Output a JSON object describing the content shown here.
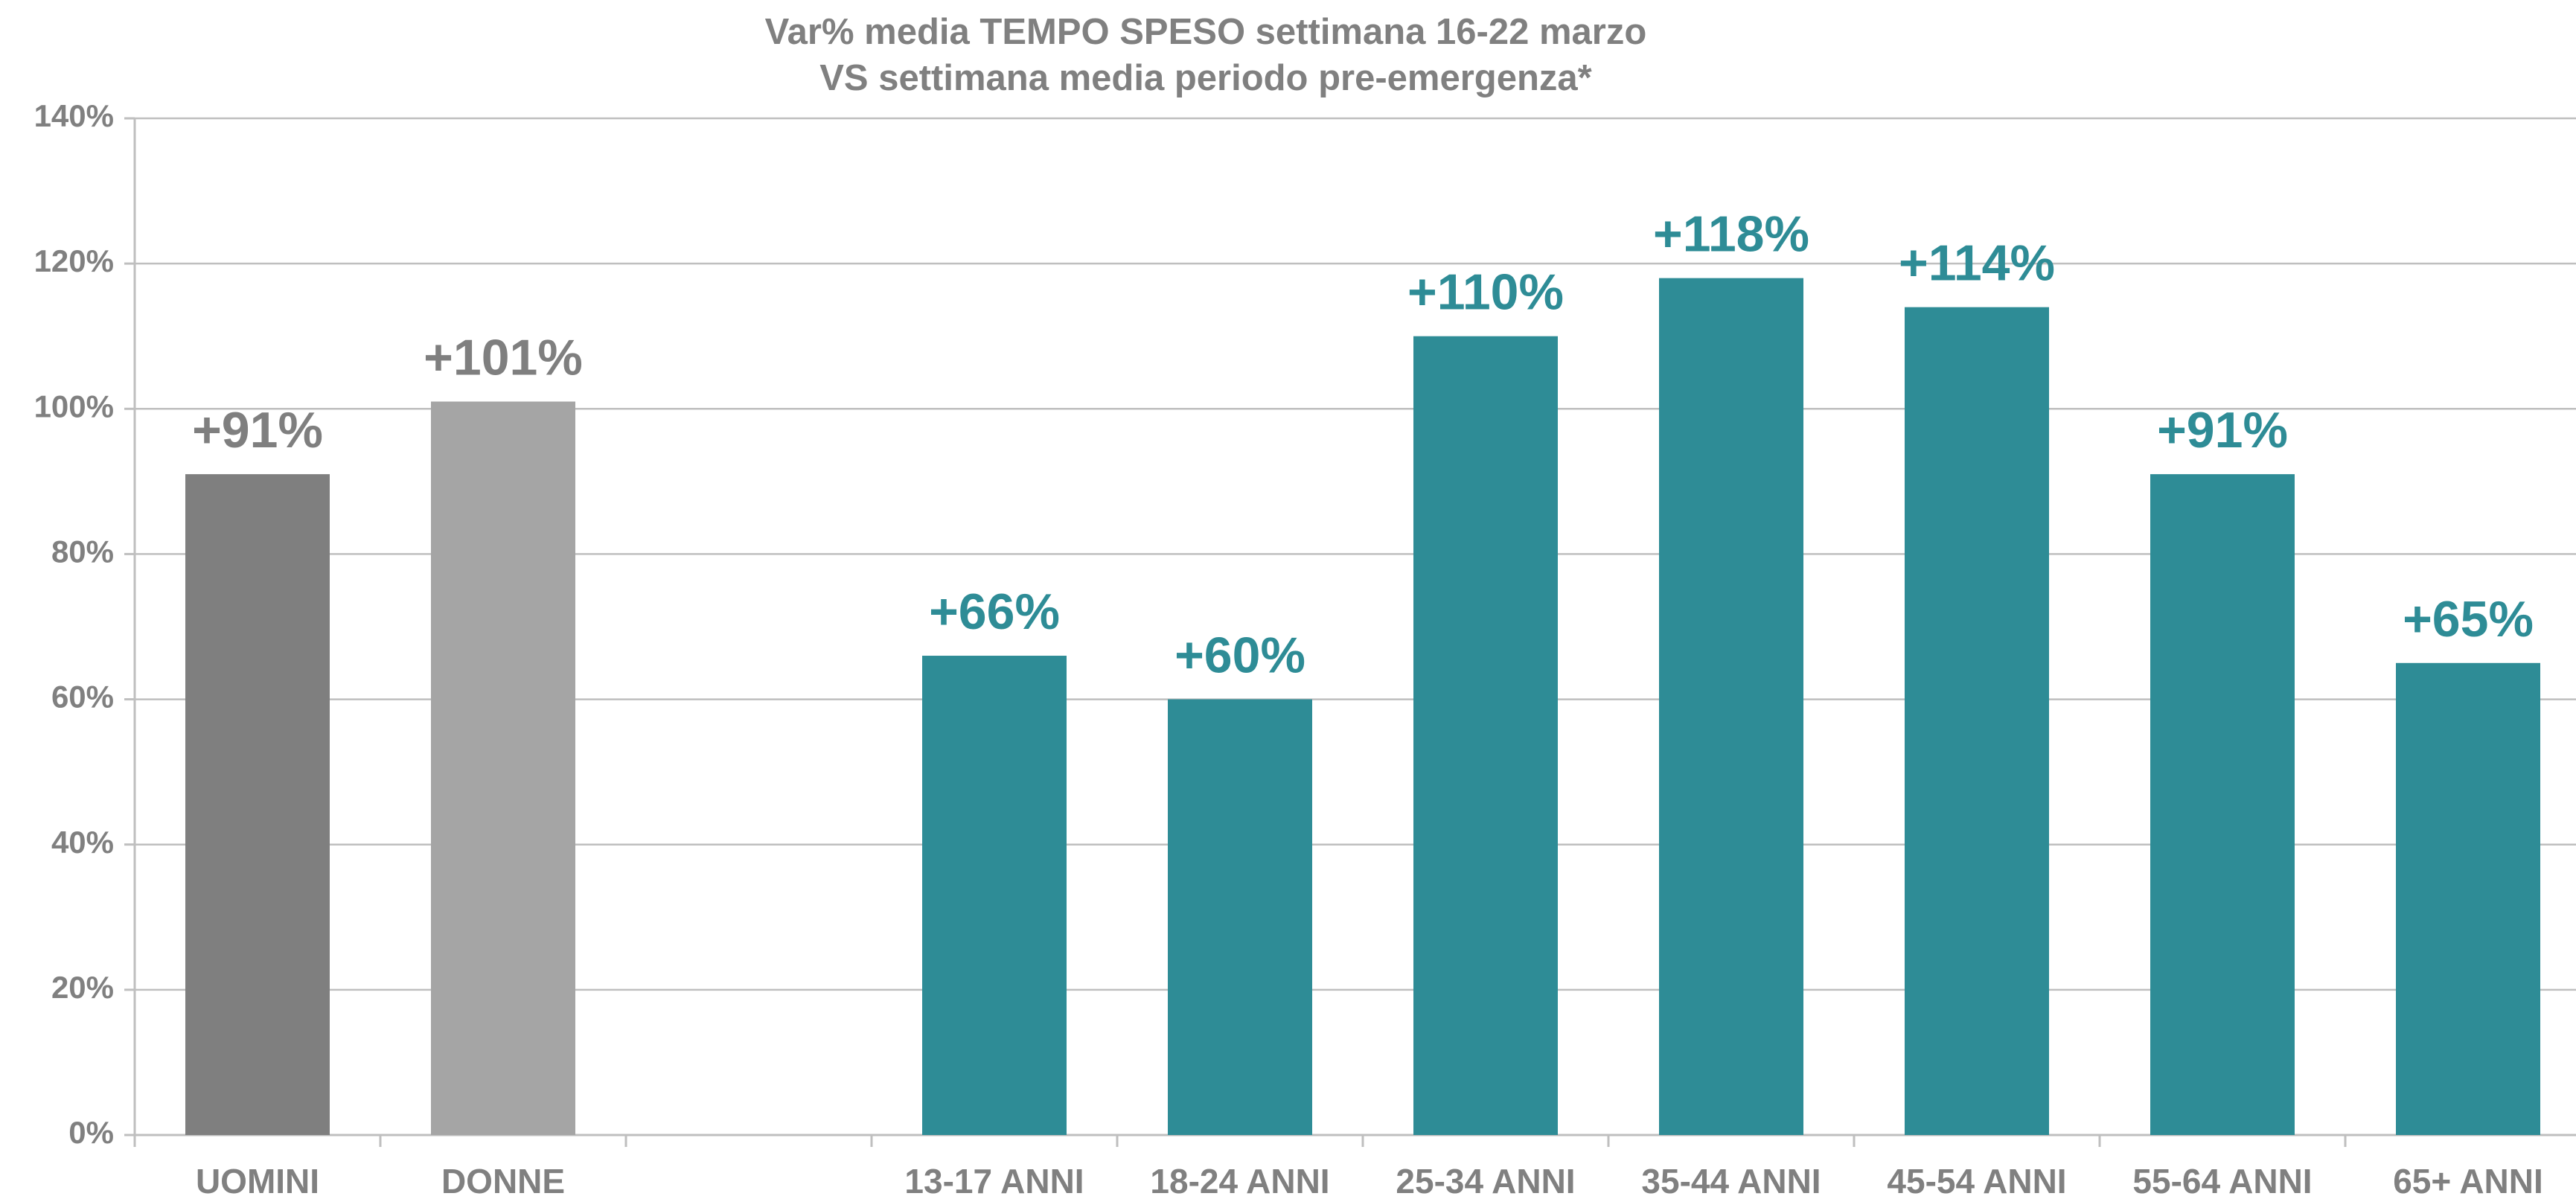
{
  "chart_data": {
    "type": "bar",
    "title": "Var% media TEMPO SPESO settimana 16-22 marzo",
    "subtitle": "VS settimana media periodo pre-emergenza*",
    "categories": [
      "UOMINI",
      "DONNE",
      null,
      "13-17 ANNI",
      "18-24 ANNI",
      "25-34 ANNI",
      "35-44 ANNI",
      "45-54 ANNI",
      "55-64 ANNI",
      "65+ ANNI"
    ],
    "values": [
      91,
      101,
      null,
      66,
      60,
      110,
      118,
      114,
      91,
      65
    ],
    "value_labels": [
      "+91%",
      "+101%",
      null,
      "+66%",
      "+60%",
      "+110%",
      "+118%",
      "+114%",
      "+91%",
      "+65%"
    ],
    "colors": [
      "#7f7f7f",
      "#a5a5a5",
      null,
      "#2e8c96",
      "#2e8c96",
      "#2e8c96",
      "#2e8c96",
      "#2e8c96",
      "#2e8c96",
      "#2e8c96"
    ],
    "ylim": [
      0,
      140
    ],
    "yticks": [
      {
        "value": 0,
        "label": "0%"
      },
      {
        "value": 20,
        "label": "20%"
      },
      {
        "value": 40,
        "label": "40%"
      },
      {
        "value": 60,
        "label": "60%"
      },
      {
        "value": 80,
        "label": "80%"
      },
      {
        "value": 100,
        "label": "100%"
      },
      {
        "value": 120,
        "label": "120%"
      },
      {
        "value": 140,
        "label": "140%"
      }
    ],
    "grid": true
  }
}
